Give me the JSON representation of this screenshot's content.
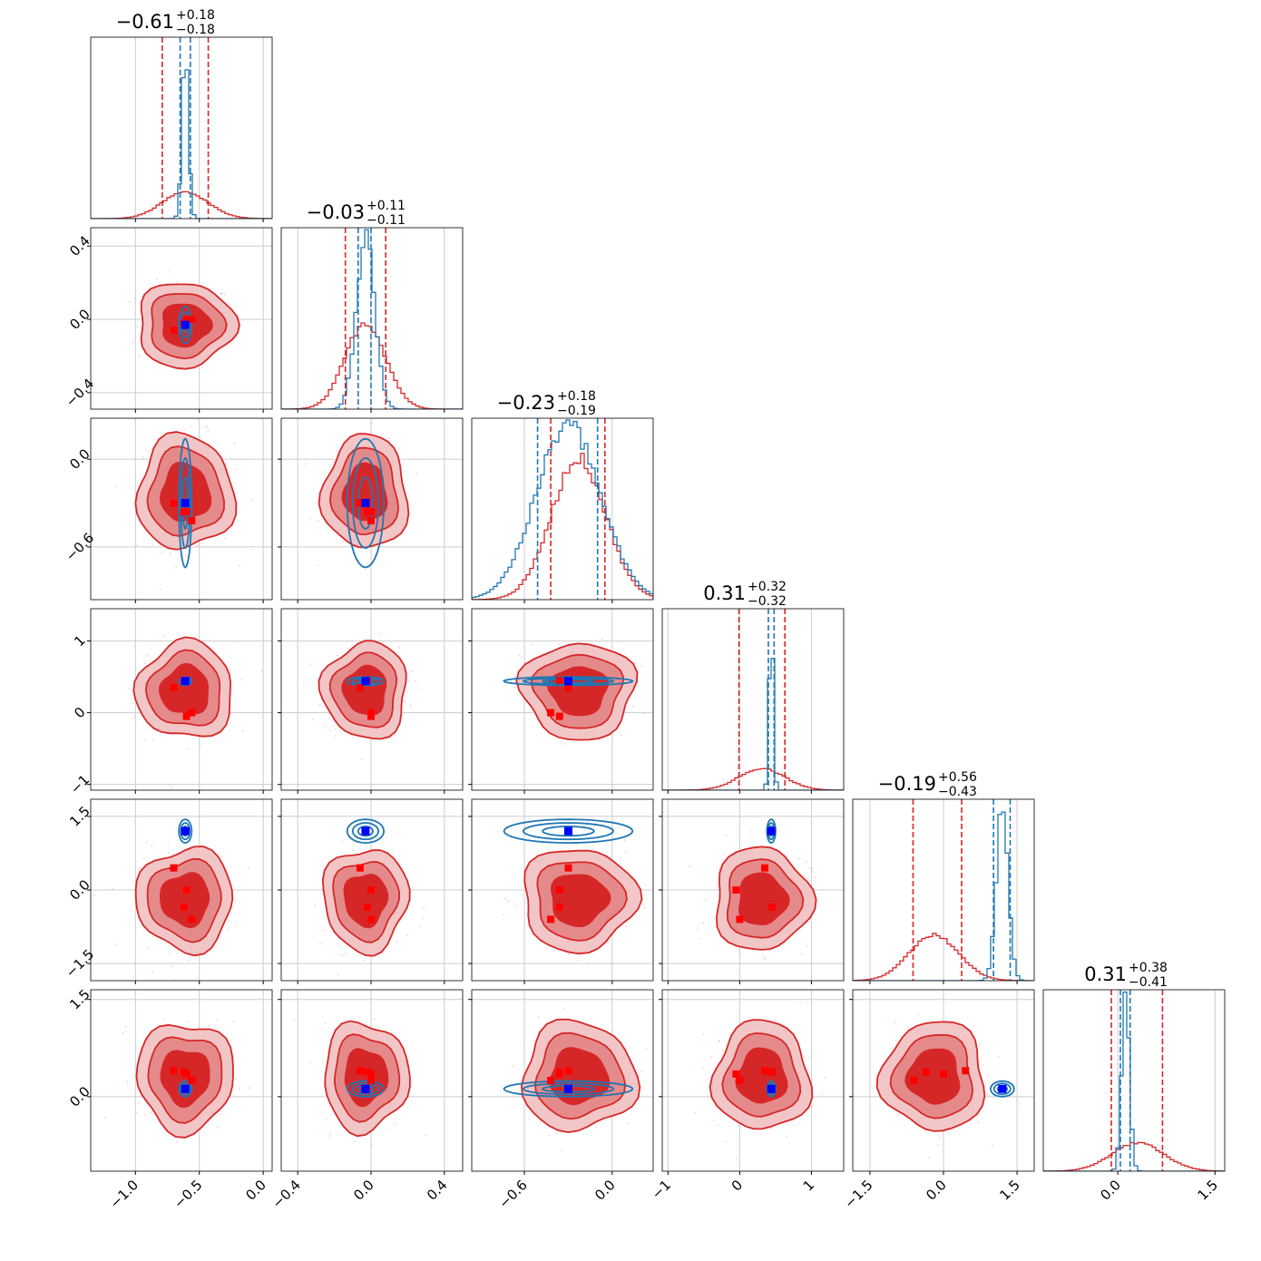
{
  "colors": {
    "red": "#d62728",
    "blue": "#1f77b4",
    "marker_blue": "#0000ff",
    "marker_red": "#ff0000",
    "grid": "#cccccc"
  },
  "chart_data": {
    "type": "corner",
    "n_params": 6,
    "grid": true,
    "ranges": [
      [
        -1.35,
        0.07
      ],
      [
        -0.49,
        0.5
      ],
      [
        -0.96,
        0.28
      ],
      [
        -1.08,
        1.45
      ],
      [
        -1.85,
        1.85
      ],
      [
        -1.15,
        1.65
      ]
    ],
    "titles": [
      {
        "median": "−0.61",
        "plus": "+0.18",
        "minus": "−0.18"
      },
      {
        "median": "−0.03",
        "plus": "+0.11",
        "minus": "−0.11"
      },
      {
        "median": "−0.23",
        "plus": "+0.18",
        "minus": "−0.19"
      },
      {
        "median": "0.31",
        "plus": "+0.32",
        "minus": "−0.32"
      },
      {
        "median": "−0.19",
        "plus": "+0.56",
        "minus": "−0.43"
      },
      {
        "median": "0.31",
        "plus": "+0.38",
        "minus": "−0.41"
      }
    ],
    "x_ticks": [
      [
        {
          "v": -1.0,
          "label": "−1.0"
        },
        {
          "v": -0.5,
          "label": "−0.5"
        },
        {
          "v": 0.0,
          "label": "0.0"
        }
      ],
      [
        {
          "v": -0.4,
          "label": "−0.4"
        },
        {
          "v": 0.0,
          "label": "0.0"
        },
        {
          "v": 0.4,
          "label": "0.4"
        }
      ],
      [
        {
          "v": -0.6,
          "label": "−0.6"
        },
        {
          "v": 0.0,
          "label": "0.0"
        }
      ],
      [
        {
          "v": -1,
          "label": "−1"
        },
        {
          "v": 0,
          "label": "0"
        },
        {
          "v": 1,
          "label": "1"
        }
      ],
      [
        {
          "v": -1.5,
          "label": "−1.5"
        },
        {
          "v": 0.0,
          "label": "0.0"
        },
        {
          "v": 1.5,
          "label": "1.5"
        }
      ],
      [
        {
          "v": 0.0,
          "label": "0.0"
        },
        {
          "v": 1.5,
          "label": "1.5"
        }
      ]
    ],
    "y_ticks": [
      [],
      [
        {
          "v": 0.4,
          "label": "0.4"
        },
        {
          "v": 0.0,
          "label": "0.0"
        },
        {
          "v": -0.4,
          "label": "−0.4"
        }
      ],
      [
        {
          "v": 0.0,
          "label": "0.0"
        },
        {
          "v": -0.6,
          "label": "−0.6"
        }
      ],
      [
        {
          "v": 1,
          "label": "1"
        },
        {
          "v": 0,
          "label": "0"
        },
        {
          "v": -1,
          "label": "−1"
        }
      ],
      [
        {
          "v": 1.5,
          "label": "1.5"
        },
        {
          "v": 0.0,
          "label": "0.0"
        },
        {
          "v": -1.5,
          "label": "−1.5"
        }
      ],
      [
        {
          "v": 1.5,
          "label": "1.5"
        },
        {
          "v": 0.0,
          "label": "0.0"
        }
      ]
    ],
    "red_posterior": {
      "mean": [
        -0.61,
        -0.03,
        -0.23,
        0.31,
        -0.19,
        0.31
      ],
      "sd": [
        0.18,
        0.11,
        0.185,
        0.32,
        0.5,
        0.4
      ],
      "quantiles": [
        [
          -0.79,
          -0.43
        ],
        [
          -0.14,
          0.08
        ],
        [
          -0.42,
          -0.05
        ],
        [
          -0.01,
          0.63
        ],
        [
          -0.62,
          0.37
        ],
        [
          -0.1,
          0.69
        ]
      ]
    },
    "blue_posterior": {
      "mean": [
        -0.61,
        -0.03,
        -0.3,
        0.44,
        1.2,
        0.12
      ],
      "sd": [
        0.025,
        0.05,
        0.22,
        0.03,
        0.12,
        0.06
      ],
      "quantiles": [
        [
          -0.65,
          -0.57
        ],
        [
          -0.07,
          0.0
        ],
        [
          -0.51,
          -0.1
        ],
        [
          0.4,
          0.48
        ],
        [
          1.02,
          1.36
        ],
        [
          0.04,
          0.19
        ]
      ]
    },
    "blue_markers": [
      -0.61,
      -0.03,
      -0.3,
      0.44,
      1.2,
      0.12
    ],
    "red_markers": [
      [
        -0.7,
        -0.6,
        -0.56,
        -0.62
      ],
      [
        -0.06,
        0.0,
        0.0,
        -0.02
      ],
      [
        -0.3,
        -0.36,
        -0.42,
        -0.36
      ],
      [
        0.35,
        -0.05,
        0.0,
        0.45
      ],
      [
        0.45,
        0.0,
        -0.6,
        -0.35
      ],
      [
        0.4,
        0.35,
        0.25,
        0.38
      ]
    ]
  }
}
